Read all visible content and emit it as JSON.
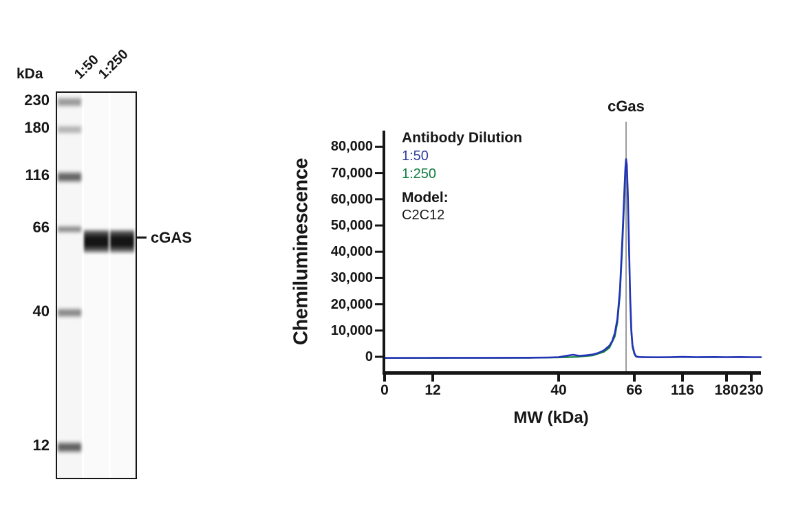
{
  "gel": {
    "unit_label": "kDa",
    "marker_values": [
      230,
      180,
      116,
      66,
      40,
      12
    ],
    "marker_labels": [
      "230",
      "180",
      "116",
      "66",
      "40",
      "12"
    ],
    "lane_labels": [
      "1:50",
      "1:250"
    ],
    "band_annotation": "cGAS"
  },
  "chart_data": {
    "type": "line",
    "peak_label": "cGas",
    "xlabel": "MW (kDa)",
    "ylabel": "Chemiluminescence",
    "x_tick_values": [
      0,
      12,
      40,
      66,
      116,
      180,
      230
    ],
    "x_tick_labels": [
      "0",
      "12",
      "40",
      "66",
      "116",
      "180",
      "230"
    ],
    "y_tick_values": [
      0,
      10000,
      20000,
      30000,
      40000,
      50000,
      60000,
      70000,
      80000
    ],
    "y_tick_labels": [
      "0",
      "10,000",
      "20,000",
      "30,000",
      "40,000",
      "50,000",
      "60,000",
      "70,000",
      "80,000"
    ],
    "xlim": [
      0,
      248
    ],
    "ylim": [
      0,
      86000
    ],
    "grid": false,
    "peak_marker_kda": 62.5,
    "peak_height_approx": 75800,
    "marker_line_color": "#9c9c9c",
    "axis_color": "#161616",
    "legend": {
      "title": "Antibody Dilution",
      "entries": [
        {
          "label": "1:50",
          "color": "#2e3f9e"
        },
        {
          "label": "1:250",
          "color": "#107d3e"
        }
      ],
      "model_label": "Model:",
      "model_value": "C2C12"
    },
    "series": [
      {
        "name": "1:250",
        "color": "#108040",
        "points": [
          [
            0,
            60
          ],
          [
            15,
            80
          ],
          [
            30,
            100
          ],
          [
            40,
            250
          ],
          [
            45,
            500
          ],
          [
            50,
            1000
          ],
          [
            54,
            2400
          ],
          [
            56,
            4000
          ],
          [
            58,
            8200
          ],
          [
            59,
            13500
          ],
          [
            60,
            24000
          ],
          [
            61,
            43000
          ],
          [
            61.8,
            61000
          ],
          [
            62.2,
            70500
          ],
          [
            62.5,
            74200
          ],
          [
            62.8,
            71800
          ],
          [
            63.2,
            60500
          ],
          [
            63.7,
            41500
          ],
          [
            64.2,
            21500
          ],
          [
            64.7,
            9500
          ],
          [
            65.2,
            4200
          ],
          [
            66,
            1600
          ],
          [
            67,
            700
          ],
          [
            68,
            450
          ],
          [
            72,
            350
          ],
          [
            85,
            300
          ],
          [
            116,
            400
          ],
          [
            160,
            350
          ],
          [
            200,
            380
          ],
          [
            248,
            330
          ]
        ]
      },
      {
        "name": "1:50",
        "color": "#2434b8",
        "points": [
          [
            0,
            100
          ],
          [
            10,
            120
          ],
          [
            20,
            150
          ],
          [
            30,
            180
          ],
          [
            36,
            250
          ],
          [
            40,
            400
          ],
          [
            42,
            900
          ],
          [
            44,
            1300
          ],
          [
            46,
            900
          ],
          [
            48,
            1100
          ],
          [
            50,
            1400
          ],
          [
            52,
            2000
          ],
          [
            54,
            3000
          ],
          [
            56,
            4800
          ],
          [
            57,
            6500
          ],
          [
            58,
            9500
          ],
          [
            59,
            15000
          ],
          [
            60,
            26000
          ],
          [
            61,
            46000
          ],
          [
            61.8,
            64000
          ],
          [
            62.2,
            72500
          ],
          [
            62.5,
            75800
          ],
          [
            62.8,
            73500
          ],
          [
            63.2,
            63000
          ],
          [
            63.7,
            44000
          ],
          [
            64.2,
            24000
          ],
          [
            64.7,
            11000
          ],
          [
            65.2,
            5000
          ],
          [
            66,
            2000
          ],
          [
            67,
            900
          ],
          [
            68,
            600
          ],
          [
            70,
            450
          ],
          [
            75,
            400
          ],
          [
            85,
            350
          ],
          [
            100,
            400
          ],
          [
            116,
            500
          ],
          [
            135,
            400
          ],
          [
            160,
            450
          ],
          [
            180,
            400
          ],
          [
            205,
            450
          ],
          [
            230,
            400
          ],
          [
            248,
            400
          ]
        ]
      }
    ]
  }
}
